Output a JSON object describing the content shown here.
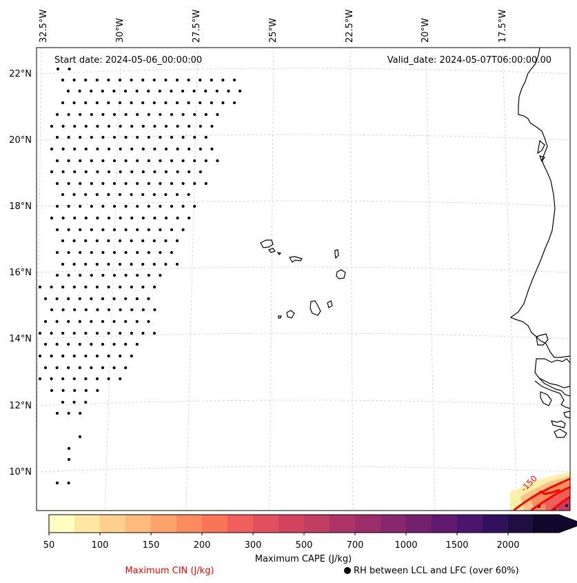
{
  "map": {
    "start_label": "Start date: 2024-05-06_00:00:00",
    "valid_label": "Valid_date: 2024-05-07T06:00:00.00",
    "lon_labels": [
      "32.5°W",
      "30°W",
      "27.5°W",
      "25°W",
      "22.5°W",
      "20°W",
      "17.5°W"
    ],
    "lat_labels": [
      "22°N",
      "20°N",
      "18°N",
      "16°N",
      "14°N",
      "12°N",
      "10°N"
    ],
    "contour_label": "-150"
  },
  "colorbar": {
    "title": "Maximum CAPE (J/kg)",
    "ticks": [
      "50",
      "100",
      "150",
      "200",
      "300",
      "500",
      "700",
      "1000",
      "1500",
      "2000"
    ],
    "colors": [
      "#fffdc1",
      "#fee8a3",
      "#fecf8d",
      "#febb7b",
      "#fea36c",
      "#fd8b5f",
      "#fa7557",
      "#f05f5b",
      "#e24f5e",
      "#d3455f",
      "#c13d62",
      "#ad3464",
      "#9b2d68",
      "#88276b",
      "#75206e",
      "#621a70",
      "#4b146e",
      "#31115c",
      "#1f0e41",
      "#12082b"
    ]
  },
  "legend": {
    "cin_label": "Maximum CIN (J/kg)",
    "cin_color": "#ff0000",
    "rh_label": "RH between LCL and LFC (over 60%)"
  }
}
